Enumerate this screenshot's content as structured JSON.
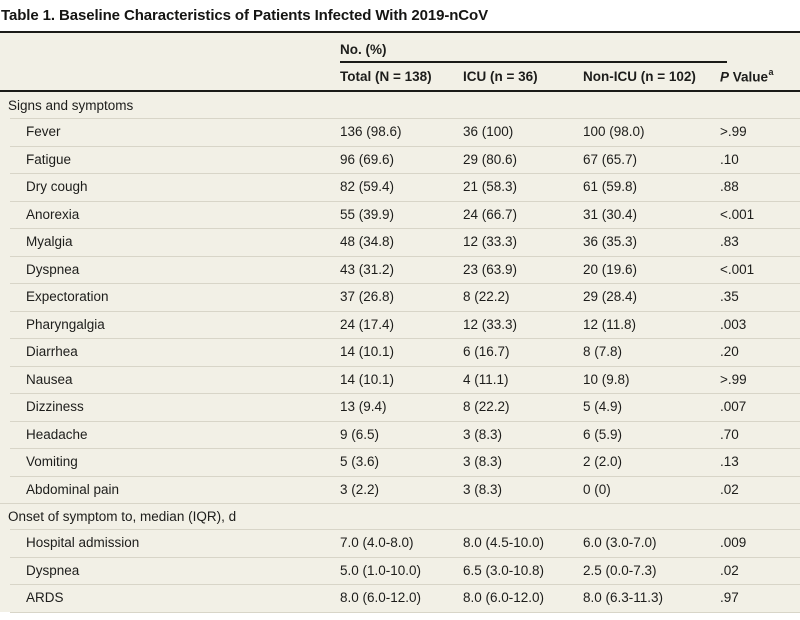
{
  "title": "Table 1. Baseline Characteristics of Patients Infected With 2019-nCoV",
  "header": {
    "group_label": "No. (%)",
    "columns": [
      "Total (N = 138)",
      "ICU (n = 36)",
      "Non-ICU (n = 102)"
    ],
    "p_italic": "P",
    "p_rest": " Value",
    "p_superscript": "a"
  },
  "colors": {
    "table_background": "#f2f0e6",
    "dark_rule": "#1b1b18",
    "row_separator": "#d8d5c8",
    "text": "#1d1d1b"
  },
  "sections": [
    {
      "label": "Signs and symptoms",
      "rows": [
        {
          "label": "Fever",
          "total": "136 (98.6)",
          "icu": "36 (100)",
          "non_icu": "100 (98.0)",
          "p": ">.99"
        },
        {
          "label": "Fatigue",
          "total": "96 (69.6)",
          "icu": "29 (80.6)",
          "non_icu": "67 (65.7)",
          "p": ".10"
        },
        {
          "label": "Dry cough",
          "total": "82 (59.4)",
          "icu": "21 (58.3)",
          "non_icu": "61 (59.8)",
          "p": ".88"
        },
        {
          "label": "Anorexia",
          "total": "55 (39.9)",
          "icu": "24 (66.7)",
          "non_icu": "31 (30.4)",
          "p": "<.001"
        },
        {
          "label": "Myalgia",
          "total": "48 (34.8)",
          "icu": "12 (33.3)",
          "non_icu": "36 (35.3)",
          "p": ".83"
        },
        {
          "label": "Dyspnea",
          "total": "43 (31.2)",
          "icu": "23 (63.9)",
          "non_icu": "20 (19.6)",
          "p": "<.001"
        },
        {
          "label": "Expectoration",
          "total": "37 (26.8)",
          "icu": "8 (22.2)",
          "non_icu": "29 (28.4)",
          "p": ".35"
        },
        {
          "label": "Pharyngalgia",
          "total": "24 (17.4)",
          "icu": "12 (33.3)",
          "non_icu": "12 (11.8)",
          "p": ".003"
        },
        {
          "label": "Diarrhea",
          "total": "14 (10.1)",
          "icu": "6 (16.7)",
          "non_icu": "8 (7.8)",
          "p": ".20"
        },
        {
          "label": "Nausea",
          "total": "14 (10.1)",
          "icu": "4 (11.1)",
          "non_icu": "10 (9.8)",
          "p": ">.99"
        },
        {
          "label": "Dizziness",
          "total": "13 (9.4)",
          "icu": "8 (22.2)",
          "non_icu": "5 (4.9)",
          "p": ".007"
        },
        {
          "label": "Headache",
          "total": "9 (6.5)",
          "icu": "3 (8.3)",
          "non_icu": "6 (5.9)",
          "p": ".70"
        },
        {
          "label": "Vomiting",
          "total": "5 (3.6)",
          "icu": "3 (8.3)",
          "non_icu": "2 (2.0)",
          "p": ".13"
        },
        {
          "label": "Abdominal pain",
          "total": "3 (2.2)",
          "icu": "3 (8.3)",
          "non_icu": "0 (0)",
          "p": ".02"
        }
      ]
    },
    {
      "label": "Onset of symptom to, median (IQR), d",
      "rows": [
        {
          "label": "Hospital admission",
          "total": "7.0 (4.0-8.0)",
          "icu": "8.0 (4.5-10.0)",
          "non_icu": "6.0 (3.0-7.0)",
          "p": ".009"
        },
        {
          "label": "Dyspnea",
          "total": "5.0 (1.0-10.0)",
          "icu": "6.5 (3.0-10.8)",
          "non_icu": "2.5 (0.0-7.3)",
          "p": ".02"
        },
        {
          "label": "ARDS",
          "total": "8.0 (6.0-12.0)",
          "icu": "8.0 (6.0-12.0)",
          "non_icu": "8.0 (6.3-11.3)",
          "p": ".97"
        }
      ]
    }
  ]
}
